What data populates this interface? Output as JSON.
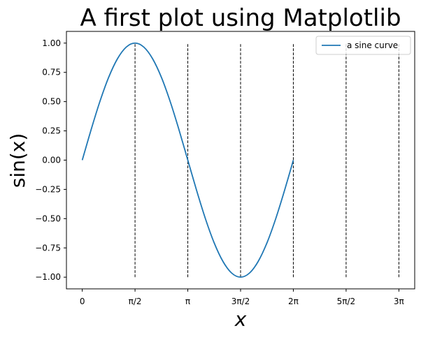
{
  "chart_data": {
    "type": "line",
    "title": "A first plot using Matplotlib",
    "xlabel": "x",
    "ylabel": "sin(x)",
    "xlim": [
      -0.4712,
      9.896
    ],
    "ylim": [
      -1.1,
      1.1
    ],
    "grid": false,
    "legend_position": "top-right",
    "x_ticks": [
      {
        "value": 0,
        "label": "0"
      },
      {
        "value": 1.5708,
        "label": "π/2"
      },
      {
        "value": 3.1416,
        "label": "π"
      },
      {
        "value": 4.7124,
        "label": "3π/2"
      },
      {
        "value": 6.2832,
        "label": "2π"
      },
      {
        "value": 7.854,
        "label": "5π/2"
      },
      {
        "value": 9.4248,
        "label": "3π"
      }
    ],
    "y_ticks": [
      {
        "value": -1.0,
        "label": "−1.00"
      },
      {
        "value": -0.75,
        "label": "−0.75"
      },
      {
        "value": -0.5,
        "label": "−0.50"
      },
      {
        "value": -0.25,
        "label": "−0.25"
      },
      {
        "value": 0.0,
        "label": "0.00"
      },
      {
        "value": 0.25,
        "label": "0.25"
      },
      {
        "value": 0.5,
        "label": "0.50"
      },
      {
        "value": 0.75,
        "label": "0.75"
      },
      {
        "value": 1.0,
        "label": "1.00"
      }
    ],
    "series": [
      {
        "name": "a sine curve",
        "color": "#1f77b4",
        "x": [
          0,
          0.2618,
          0.5236,
          0.7854,
          1.0472,
          1.309,
          1.5708,
          1.8326,
          2.0944,
          2.3562,
          2.618,
          2.8798,
          3.1416,
          3.4034,
          3.6652,
          3.927,
          4.1888,
          4.4506,
          4.7124,
          4.9742,
          5.236,
          5.4978,
          5.7596,
          6.0214,
          6.2832
        ],
        "y": [
          0,
          0.2588,
          0.5,
          0.7071,
          0.866,
          0.9659,
          1.0,
          0.9659,
          0.866,
          0.7071,
          0.5,
          0.2588,
          0,
          -0.2588,
          -0.5,
          -0.7071,
          -0.866,
          -0.9659,
          -1.0,
          -0.9659,
          -0.866,
          -0.7071,
          -0.5,
          -0.2588,
          0
        ]
      }
    ],
    "vlines": {
      "x": [
        1.5708,
        3.1416,
        4.7124,
        6.2832,
        7.854,
        9.4248
      ],
      "ymin": -1.0,
      "ymax": 1.0,
      "color": "#000000",
      "style": "dashed"
    }
  }
}
